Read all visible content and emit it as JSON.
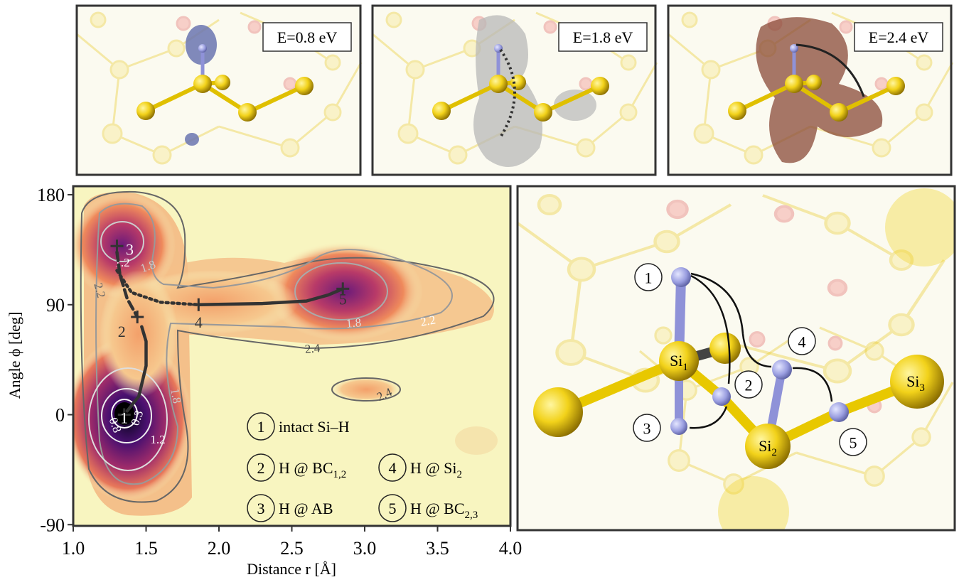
{
  "chart_data": {
    "type": "contour",
    "xlabel": "Distance r [Å]",
    "ylabel": "Angle ϕ [deg]",
    "xlim": [
      1,
      4
    ],
    "xticks": [
      {
        "value": 1,
        "label": "1.0"
      },
      {
        "value": 1.5,
        "label": "1.5"
      },
      {
        "value": 2,
        "label": "2.0"
      },
      {
        "value": 2.5,
        "label": "2.5"
      },
      {
        "value": 3,
        "label": "3.0"
      },
      {
        "value": 3.5,
        "label": "3.5"
      },
      {
        "value": 4,
        "label": "4.0"
      }
    ],
    "ylim": [
      -91,
      187
    ],
    "yticks": [
      180,
      90,
      0,
      -90
    ],
    "contour_labels": [
      2.2,
      1.2,
      1.8,
      1.8,
      2.2,
      2.4,
      2.4,
      1.8,
      1.2,
      0.8,
      0.3
    ],
    "states": [
      {
        "label": "1",
        "x": 1.35,
        "y": 0
      },
      {
        "label": "2",
        "x": 1.44,
        "y": 80
      },
      {
        "label": "3",
        "x": 1.3,
        "y": 138
      },
      {
        "label": "4",
        "x": 1.86,
        "y": 90
      },
      {
        "label": "5",
        "x": 2.85,
        "y": 103
      }
    ],
    "paths": [
      {
        "style": "solid",
        "x": [
          1.37,
          1.45,
          1.5,
          1.5,
          1.47
        ],
        "y": [
          3,
          15,
          40,
          60,
          72
        ]
      },
      {
        "style": "dashed",
        "x": [
          1.3,
          1.32,
          1.37,
          1.44
        ],
        "y": [
          133,
          115,
          95,
          80
        ]
      },
      {
        "style": "dotted",
        "x": [
          1.3,
          1.4,
          1.6,
          1.86
        ],
        "y": [
          118,
          100,
          92,
          90
        ]
      },
      {
        "style": "solid",
        "x": [
          1.86,
          2.3,
          2.6,
          2.75,
          2.85
        ],
        "y": [
          90,
          91,
          93,
          98,
          103
        ]
      }
    ],
    "legend": [
      {
        "label": "1",
        "text": "intact Si–H"
      },
      {
        "label": "2",
        "text": "H @ BC",
        "sub": "1,2"
      },
      {
        "label": "3",
        "text": "H @ AB"
      },
      {
        "label": "4",
        "text": "H @ Si",
        "sub": "2"
      },
      {
        "label": "5",
        "text": "H @ BC",
        "sub": "2,3"
      }
    ]
  },
  "isosurfaces": [
    {
      "label": "E=0.8 eV"
    },
    {
      "label": "E=1.8 eV"
    },
    {
      "label": "E=2.4 eV"
    }
  ],
  "structure": {
    "atoms": [
      {
        "text": "Si",
        "sub": "1"
      },
      {
        "text": "Si",
        "sub": "2"
      },
      {
        "text": "Si",
        "sub": "3"
      }
    ],
    "sites": [
      "1",
      "2",
      "3",
      "4",
      "5"
    ]
  }
}
